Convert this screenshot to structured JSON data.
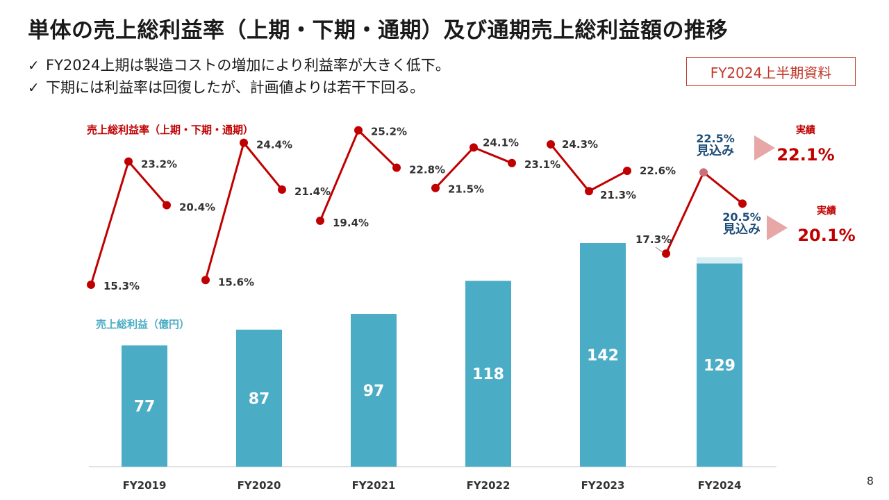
{
  "slide": {
    "title": "単体の売上総利益率（上期・下期・通期）及び通期売上総利益額の推移",
    "bullets": [
      "FY2024上期は製造コストの増加により利益率が大きく低下。",
      "下期には利益率は回復したが、計画値よりは若干下回る。"
    ],
    "check_mark": "✓",
    "tag": "FY2024上半期資料",
    "page_number": "8"
  },
  "colors": {
    "bar": "#4BACC6",
    "bar_forecast_fade": "#D6EEF4",
    "line": "#C00000",
    "line_forecast_marker": "#C9707A",
    "callout_arrow": "#E8A7A7",
    "forecast_text": "#1F4E79",
    "axis": "#D9D9D9"
  },
  "chart_data": {
    "type": "bar",
    "categories": [
      "FY2019",
      "FY2020",
      "FY2021",
      "FY2022",
      "FY2023",
      "FY2024"
    ],
    "bar_series": {
      "name": "売上総利益（億円）",
      "values": [
        77,
        87,
        97,
        118,
        142,
        129
      ],
      "forecast_top_fy2024": 133
    },
    "line_series": {
      "name": "売上総利益率（上期・下期・通期）",
      "unit": "%",
      "groups": [
        {
          "points": [
            {
              "y": 15.3,
              "label": "15.3%"
            },
            {
              "y": 23.2,
              "label": "23.2%"
            },
            {
              "y": 20.4,
              "label": "20.4%"
            }
          ]
        },
        {
          "points": [
            {
              "y": 15.6,
              "label": "15.6%"
            },
            {
              "y": 24.4,
              "label": "24.4%"
            },
            {
              "y": 21.4,
              "label": "21.4%"
            }
          ]
        },
        {
          "points": [
            {
              "y": 19.4,
              "label": "19.4%"
            },
            {
              "y": 25.2,
              "label": "25.2%"
            },
            {
              "y": 22.8,
              "label": "22.8%"
            }
          ]
        },
        {
          "points": [
            {
              "y": 21.5,
              "label": "21.5%"
            },
            {
              "y": 24.1,
              "label": "24.1%"
            },
            {
              "y": 23.1,
              "label": "23.1%"
            }
          ]
        },
        {
          "points": [
            {
              "y": 24.3,
              "label": "24.3%"
            },
            {
              "y": 21.3,
              "label": "21.3%"
            },
            {
              "y": 22.6,
              "label": "22.6%"
            }
          ]
        },
        {
          "points": [
            {
              "y": 17.3,
              "label": "17.3%"
            },
            {
              "y": 22.5,
              "label": ""
            },
            {
              "y": 20.5,
              "label": ""
            }
          ]
        }
      ]
    },
    "forecast_callouts": [
      {
        "forecast_value": "22.5%",
        "forecast_label": "見込み",
        "actual_label": "実績",
        "actual_value": "22.1%"
      },
      {
        "forecast_value": "20.5%",
        "forecast_label": "見込み",
        "actual_label": "実績",
        "actual_value": "20.1%"
      }
    ]
  }
}
